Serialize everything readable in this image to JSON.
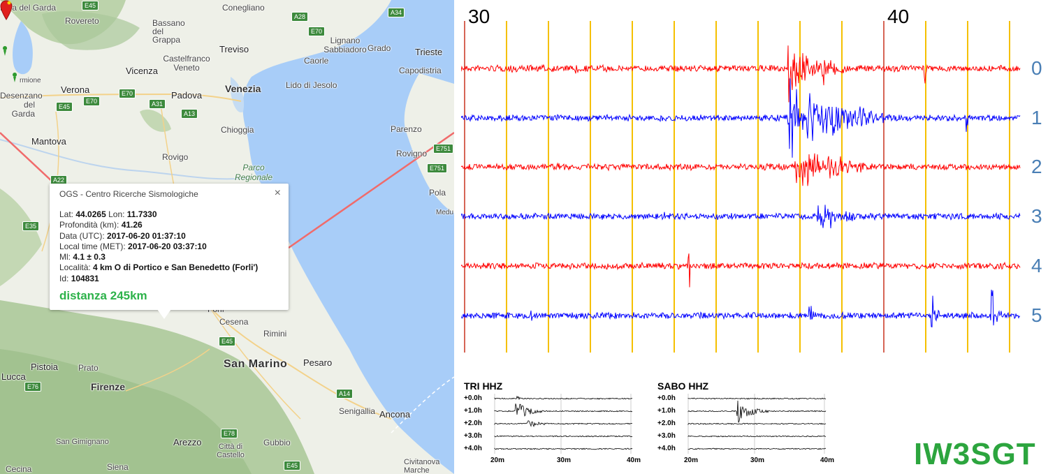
{
  "map": {
    "labels": {
      "riva": "Riva del Garda",
      "rovereto": "Rovereto",
      "conegliano": "Conegliano",
      "bassano": "Bassano del Grappa",
      "castelfranco": "Castelfranco Veneto",
      "treviso": "Treviso",
      "lignano": "Lignano Sabbiadoro",
      "grado": "Grado",
      "trieste": "Trieste",
      "caorle": "Caorle",
      "capodistria": "Capodistria",
      "vicenza": "Vicenza",
      "verona": "Verona",
      "padova": "Padova",
      "venezia": "Venezia",
      "lidojesolo": "Lido di Jesolo",
      "sirmione": "rmione",
      "desenzano": "Desenzano del Garda",
      "mantova": "Mantova",
      "chioggia": "Chioggia",
      "rovigo": "Rovigo",
      "parenzo": "Parenzo",
      "rovigno": "Rovigno",
      "parco": "Parco Regionale",
      "pola": "Pola",
      "medu": "Medu",
      "forli": "Forlì",
      "cesena": "Cesena",
      "rimini": "Rimini",
      "sanmarino": "San Marino",
      "pesaro": "Pesaro",
      "pistoia": "Pistoia",
      "prato": "Prato",
      "lucca": "Lucca",
      "firenze": "Firenze",
      "senigallia": "Senigallia",
      "ancona": "Ancona",
      "sangimignano": "San Gimignano",
      "arezzo": "Arezzo",
      "citta": "Città di Castello",
      "gubbio": "Gubbio",
      "civitanova": "Civitanova Marche",
      "cecina": "Cecina",
      "siena": "Siena"
    },
    "shields": {
      "e45a": "E45",
      "a28": "A28",
      "a34": "A34",
      "e70a": "E70",
      "e70b": "E70",
      "e45b": "E45",
      "e70c": "E70",
      "a31": "A31",
      "a13": "A13",
      "a22": "A22",
      "e751a": "E751",
      "e751b": "E751",
      "e35": "E35",
      "e45c": "E45",
      "e76": "E76",
      "a14": "A14",
      "e78": "E78",
      "e45d": "E45"
    },
    "colors": {
      "water": "#a8cdf8",
      "land": "#eef0e8",
      "relief": "#a9c79a",
      "distance_line": "#f06b6b"
    }
  },
  "popup": {
    "title": "OGS - Centro Ricerche Sismologiche",
    "close_symbol": "×",
    "lat_label": "Lat:",
    "lat": "44.0265",
    "lon_label": "Lon:",
    "lon": "11.7330",
    "depth_label": "Profondità (km):",
    "depth": "41.26",
    "utc_label": "Data (UTC):",
    "utc": "2017-06-20 01:37:10",
    "local_label": "Local time (MET):",
    "local": "2017-06-20 03:37:10",
    "ml_label": "Ml:",
    "ml": "4.1 ± 0.3",
    "loc_label": "Località:",
    "loc": "4 km O di Portico e San Benedetto (Forli')",
    "id_label": "Id:",
    "id": "104831",
    "distance": "distanza 245km"
  },
  "seismogram": {
    "hour_labels": [
      "30",
      "40"
    ],
    "row_labels": [
      "0",
      "1",
      "2",
      "3",
      "4",
      "5"
    ],
    "colors": {
      "red": "#ff0000",
      "blue": "#0000ff",
      "grid": "#f5c000",
      "major": "#c8321e",
      "row_label": "#4a7fb5"
    }
  },
  "panels": {
    "tri": {
      "title": "TRI HHZ",
      "rows": [
        "+0.0h",
        "+1.0h",
        "+2.0h",
        "+3.0h",
        "+4.0h"
      ],
      "xticks": [
        "20m",
        "30m",
        "40m"
      ]
    },
    "sabo": {
      "title": "SABO HHZ",
      "rows": [
        "+0.0h",
        "+1.0h",
        "+2.0h",
        "+3.0h",
        "+4.0h"
      ],
      "xticks": [
        "20m",
        "30m",
        "40m"
      ]
    }
  },
  "brand": "IW3SGT"
}
